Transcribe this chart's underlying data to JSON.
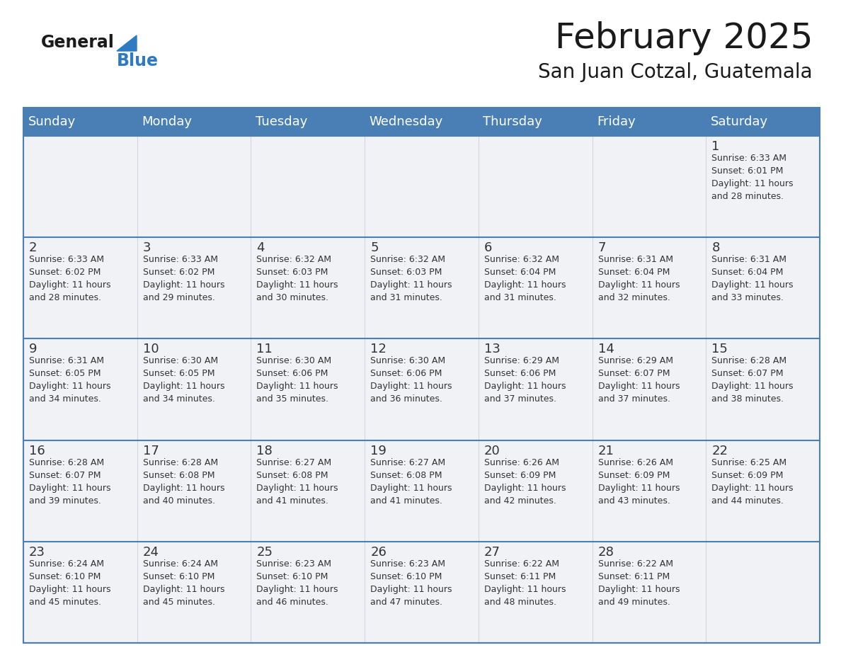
{
  "title": "February 2025",
  "subtitle": "San Juan Cotzal, Guatemala",
  "days_of_week": [
    "Sunday",
    "Monday",
    "Tuesday",
    "Wednesday",
    "Thursday",
    "Friday",
    "Saturday"
  ],
  "header_bg": "#4a7fb5",
  "header_text_color": "#ffffff",
  "cell_bg": "#f0f2f5",
  "border_color": "#4a7fb5",
  "day_number_color": "#333333",
  "info_text_color": "#333333",
  "title_color": "#1a1a1a",
  "subtitle_color": "#1a1a1a",
  "logo_general_color": "#1a1a1a",
  "logo_blue_color": "#2e7bc4",
  "weeks": [
    [
      {
        "day": null,
        "info": null
      },
      {
        "day": null,
        "info": null
      },
      {
        "day": null,
        "info": null
      },
      {
        "day": null,
        "info": null
      },
      {
        "day": null,
        "info": null
      },
      {
        "day": null,
        "info": null
      },
      {
        "day": 1,
        "info": "Sunrise: 6:33 AM\nSunset: 6:01 PM\nDaylight: 11 hours\nand 28 minutes."
      }
    ],
    [
      {
        "day": 2,
        "info": "Sunrise: 6:33 AM\nSunset: 6:02 PM\nDaylight: 11 hours\nand 28 minutes."
      },
      {
        "day": 3,
        "info": "Sunrise: 6:33 AM\nSunset: 6:02 PM\nDaylight: 11 hours\nand 29 minutes."
      },
      {
        "day": 4,
        "info": "Sunrise: 6:32 AM\nSunset: 6:03 PM\nDaylight: 11 hours\nand 30 minutes."
      },
      {
        "day": 5,
        "info": "Sunrise: 6:32 AM\nSunset: 6:03 PM\nDaylight: 11 hours\nand 31 minutes."
      },
      {
        "day": 6,
        "info": "Sunrise: 6:32 AM\nSunset: 6:04 PM\nDaylight: 11 hours\nand 31 minutes."
      },
      {
        "day": 7,
        "info": "Sunrise: 6:31 AM\nSunset: 6:04 PM\nDaylight: 11 hours\nand 32 minutes."
      },
      {
        "day": 8,
        "info": "Sunrise: 6:31 AM\nSunset: 6:04 PM\nDaylight: 11 hours\nand 33 minutes."
      }
    ],
    [
      {
        "day": 9,
        "info": "Sunrise: 6:31 AM\nSunset: 6:05 PM\nDaylight: 11 hours\nand 34 minutes."
      },
      {
        "day": 10,
        "info": "Sunrise: 6:30 AM\nSunset: 6:05 PM\nDaylight: 11 hours\nand 34 minutes."
      },
      {
        "day": 11,
        "info": "Sunrise: 6:30 AM\nSunset: 6:06 PM\nDaylight: 11 hours\nand 35 minutes."
      },
      {
        "day": 12,
        "info": "Sunrise: 6:30 AM\nSunset: 6:06 PM\nDaylight: 11 hours\nand 36 minutes."
      },
      {
        "day": 13,
        "info": "Sunrise: 6:29 AM\nSunset: 6:06 PM\nDaylight: 11 hours\nand 37 minutes."
      },
      {
        "day": 14,
        "info": "Sunrise: 6:29 AM\nSunset: 6:07 PM\nDaylight: 11 hours\nand 37 minutes."
      },
      {
        "day": 15,
        "info": "Sunrise: 6:28 AM\nSunset: 6:07 PM\nDaylight: 11 hours\nand 38 minutes."
      }
    ],
    [
      {
        "day": 16,
        "info": "Sunrise: 6:28 AM\nSunset: 6:07 PM\nDaylight: 11 hours\nand 39 minutes."
      },
      {
        "day": 17,
        "info": "Sunrise: 6:28 AM\nSunset: 6:08 PM\nDaylight: 11 hours\nand 40 minutes."
      },
      {
        "day": 18,
        "info": "Sunrise: 6:27 AM\nSunset: 6:08 PM\nDaylight: 11 hours\nand 41 minutes."
      },
      {
        "day": 19,
        "info": "Sunrise: 6:27 AM\nSunset: 6:08 PM\nDaylight: 11 hours\nand 41 minutes."
      },
      {
        "day": 20,
        "info": "Sunrise: 6:26 AM\nSunset: 6:09 PM\nDaylight: 11 hours\nand 42 minutes."
      },
      {
        "day": 21,
        "info": "Sunrise: 6:26 AM\nSunset: 6:09 PM\nDaylight: 11 hours\nand 43 minutes."
      },
      {
        "day": 22,
        "info": "Sunrise: 6:25 AM\nSunset: 6:09 PM\nDaylight: 11 hours\nand 44 minutes."
      }
    ],
    [
      {
        "day": 23,
        "info": "Sunrise: 6:24 AM\nSunset: 6:10 PM\nDaylight: 11 hours\nand 45 minutes."
      },
      {
        "day": 24,
        "info": "Sunrise: 6:24 AM\nSunset: 6:10 PM\nDaylight: 11 hours\nand 45 minutes."
      },
      {
        "day": 25,
        "info": "Sunrise: 6:23 AM\nSunset: 6:10 PM\nDaylight: 11 hours\nand 46 minutes."
      },
      {
        "day": 26,
        "info": "Sunrise: 6:23 AM\nSunset: 6:10 PM\nDaylight: 11 hours\nand 47 minutes."
      },
      {
        "day": 27,
        "info": "Sunrise: 6:22 AM\nSunset: 6:11 PM\nDaylight: 11 hours\nand 48 minutes."
      },
      {
        "day": 28,
        "info": "Sunrise: 6:22 AM\nSunset: 6:11 PM\nDaylight: 11 hours\nand 49 minutes."
      },
      {
        "day": null,
        "info": null
      }
    ]
  ]
}
